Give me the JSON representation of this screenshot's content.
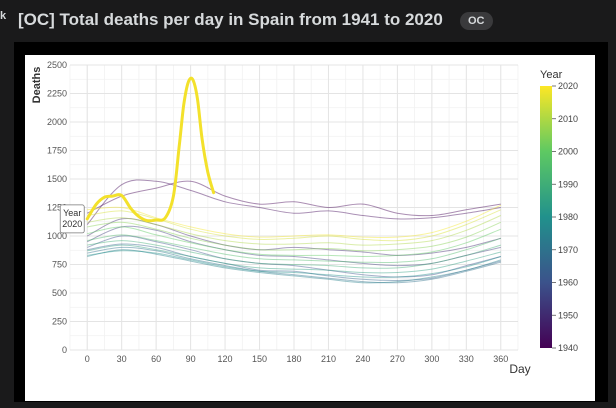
{
  "post": {
    "corner_glyph": "k",
    "title": "[OC] Total deaths per day in Spain from 1941 to 2020",
    "badge": "OC"
  },
  "colors": {
    "page_bg": "#1a1a1b",
    "frame_bg": "#000000",
    "highlight": "#f3e12b",
    "bg_curve": "#b9bcd8",
    "text": "#d7dadc"
  },
  "chart_data": {
    "type": "line",
    "title": "",
    "xlabel": "Day",
    "ylabel": "Deaths",
    "xlim": [
      -15,
      375
    ],
    "ylim": [
      0,
      2500
    ],
    "xticks": [
      0,
      30,
      60,
      90,
      120,
      150,
      180,
      210,
      240,
      270,
      300,
      330,
      360
    ],
    "yticks": [
      0,
      250,
      500,
      750,
      1000,
      1250,
      1500,
      1750,
      2000,
      2250,
      2500
    ],
    "grid": true,
    "legend_position": "right",
    "colorbar": {
      "title": "Year",
      "ticks": [
        1940,
        1950,
        1960,
        1970,
        1980,
        1990,
        2000,
        2010,
        2020
      ],
      "range": [
        1940,
        2020
      ],
      "colors": [
        "#440154",
        "#3b528b",
        "#21918c",
        "#5ec962",
        "#fde725"
      ]
    },
    "highlight": {
      "name": "2020",
      "label": "Year\n2020",
      "color": "#f3e12b",
      "x": [
        0,
        8,
        15,
        22,
        30,
        38,
        45,
        52,
        60,
        68,
        75,
        80,
        84,
        88,
        92,
        96,
        100,
        105,
        110
      ],
      "y": [
        1150,
        1280,
        1340,
        1350,
        1355,
        1240,
        1170,
        1135,
        1140,
        1160,
        1350,
        1780,
        2150,
        2350,
        2370,
        2200,
        1850,
        1560,
        1380
      ]
    },
    "background_series": [
      {
        "year": 1941,
        "x": [
          0,
          30,
          60,
          90,
          120,
          150,
          180,
          210,
          240,
          270,
          300,
          330,
          360
        ],
        "y": [
          1200,
          1350,
          1420,
          1480,
          1350,
          1280,
          1300,
          1250,
          1280,
          1200,
          1180,
          1230,
          1280
        ]
      },
      {
        "year": 1942,
        "x": [
          0,
          30,
          60,
          90,
          120,
          150,
          180,
          210,
          240,
          270,
          300,
          330,
          360
        ],
        "y": [
          1100,
          1450,
          1480,
          1400,
          1300,
          1250,
          1200,
          1220,
          1180,
          1150,
          1160,
          1200,
          1250
        ]
      },
      {
        "year": 1950,
        "x": [
          0,
          30,
          60,
          90,
          120,
          150,
          180,
          210,
          240,
          270,
          300,
          330,
          360
        ],
        "y": [
          1000,
          1150,
          1100,
          1000,
          920,
          880,
          900,
          880,
          860,
          830,
          850,
          900,
          980
        ]
      },
      {
        "year": 1955,
        "x": [
          0,
          30,
          60,
          90,
          120,
          150,
          180,
          210,
          240,
          270,
          300,
          330,
          360
        ],
        "y": [
          950,
          1080,
          1050,
          950,
          880,
          830,
          820,
          790,
          760,
          740,
          760,
          830,
          900
        ]
      },
      {
        "year": 1960,
        "x": [
          0,
          30,
          60,
          90,
          120,
          150,
          180,
          210,
          240,
          270,
          300,
          330,
          360
        ],
        "y": [
          900,
          1000,
          950,
          880,
          800,
          760,
          740,
          700,
          660,
          640,
          660,
          740,
          820
        ]
      },
      {
        "year": 1965,
        "x": [
          0,
          30,
          60,
          90,
          120,
          150,
          180,
          210,
          240,
          270,
          300,
          330,
          360
        ],
        "y": [
          880,
          930,
          900,
          820,
          760,
          700,
          690,
          650,
          620,
          610,
          630,
          700,
          780
        ]
      },
      {
        "year": 1970,
        "x": [
          0,
          30,
          60,
          90,
          120,
          150,
          180,
          210,
          240,
          270,
          300,
          330,
          360
        ],
        "y": [
          850,
          900,
          870,
          800,
          740,
          690,
          660,
          630,
          600,
          590,
          620,
          690,
          770
        ]
      },
      {
        "year": 1975,
        "x": [
          0,
          30,
          60,
          90,
          120,
          150,
          180,
          210,
          240,
          270,
          300,
          330,
          360
        ],
        "y": [
          820,
          880,
          840,
          780,
          720,
          680,
          650,
          620,
          590,
          600,
          640,
          700,
          790
        ]
      },
      {
        "year": 1980,
        "x": [
          0,
          30,
          60,
          90,
          120,
          150,
          180,
          210,
          240,
          270,
          300,
          330,
          360
        ],
        "y": [
          830,
          870,
          850,
          790,
          730,
          690,
          680,
          660,
          640,
          640,
          670,
          730,
          820
        ]
      },
      {
        "year": 1985,
        "x": [
          0,
          30,
          60,
          90,
          120,
          150,
          180,
          210,
          240,
          270,
          300,
          330,
          360
        ],
        "y": [
          870,
          920,
          880,
          820,
          760,
          720,
          710,
          700,
          680,
          680,
          710,
          780,
          860
        ]
      },
      {
        "year": 1990,
        "x": [
          0,
          30,
          60,
          90,
          120,
          150,
          180,
          210,
          240,
          270,
          300,
          330,
          360
        ],
        "y": [
          920,
          960,
          920,
          860,
          800,
          760,
          750,
          740,
          720,
          720,
          760,
          830,
          920
        ]
      },
      {
        "year": 1995,
        "x": [
          0,
          30,
          60,
          90,
          120,
          150,
          180,
          210,
          240,
          270,
          300,
          330,
          360
        ],
        "y": [
          960,
          1010,
          960,
          900,
          840,
          800,
          790,
          780,
          770,
          770,
          800,
          880,
          980
        ]
      },
      {
        "year": 2000,
        "x": [
          0,
          30,
          60,
          90,
          120,
          150,
          180,
          210,
          240,
          270,
          300,
          330,
          360
        ],
        "y": [
          1020,
          1080,
          1010,
          940,
          880,
          840,
          830,
          830,
          820,
          830,
          860,
          940,
          1060
        ]
      },
      {
        "year": 2005,
        "x": [
          0,
          30,
          60,
          90,
          120,
          150,
          180,
          210,
          240,
          270,
          300,
          330,
          360
        ],
        "y": [
          1080,
          1120,
          1060,
          980,
          920,
          880,
          880,
          890,
          870,
          880,
          910,
          990,
          1120
        ]
      },
      {
        "year": 2010,
        "x": [
          0,
          30,
          60,
          90,
          120,
          150,
          180,
          210,
          240,
          270,
          300,
          330,
          360
        ],
        "y": [
          1120,
          1160,
          1100,
          1020,
          960,
          930,
          930,
          940,
          920,
          930,
          960,
          1050,
          1180
        ]
      },
      {
        "year": 2015,
        "x": [
          0,
          30,
          60,
          90,
          120,
          150,
          180,
          210,
          240,
          270,
          300,
          330,
          360
        ],
        "y": [
          1180,
          1220,
          1150,
          1060,
          1000,
          970,
          980,
          1000,
          970,
          960,
          1000,
          1100,
          1230
        ]
      },
      {
        "year": 2019,
        "x": [
          0,
          30,
          60,
          90,
          120,
          150,
          180,
          210,
          240,
          270,
          300,
          330,
          360
        ],
        "y": [
          1230,
          1250,
          1160,
          1080,
          1020,
          990,
          1000,
          1010,
          990,
          990,
          1030,
          1130,
          1270
        ]
      }
    ]
  }
}
